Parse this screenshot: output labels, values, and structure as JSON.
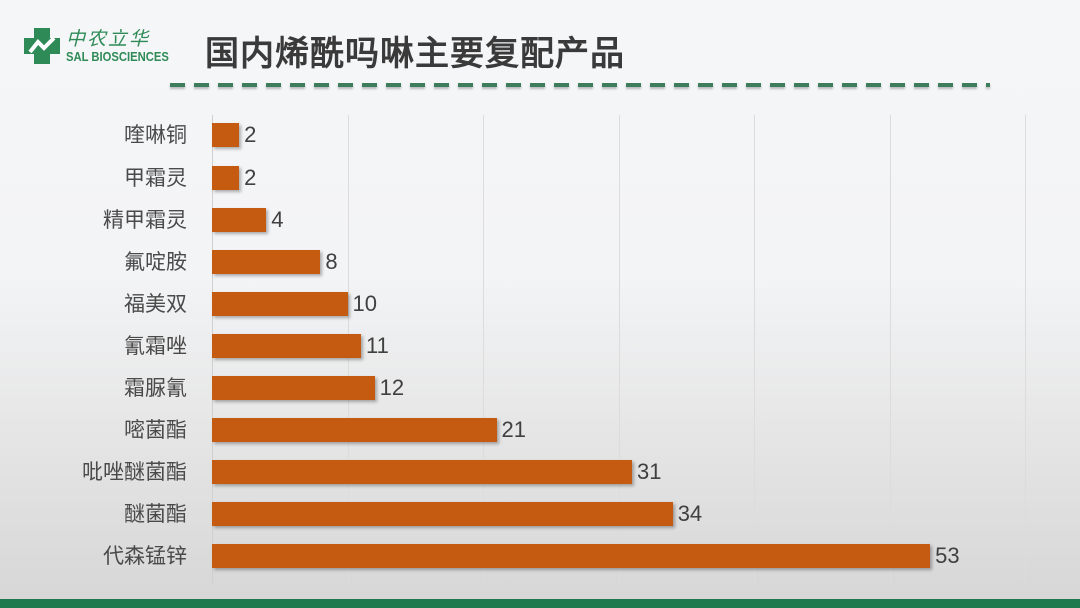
{
  "header": {
    "logo_cn": "中农立华",
    "logo_en": "SAL BIOSCIENCES",
    "title": "国内烯酰吗啉主要复配产品"
  },
  "colors": {
    "bar": "#c55a11",
    "brand_green": "#2e8b57",
    "footer_green": "#1f7a4d",
    "dash_green": "#3d7d5c"
  },
  "chart_data": {
    "type": "bar",
    "orientation": "horizontal",
    "title": "国内烯酰吗啉主要复配产品",
    "categories": [
      "喹啉铜",
      "甲霜灵",
      "精甲霜灵",
      "氟啶胺",
      "福美双",
      "氰霜唑",
      "霜脲氰",
      "嘧菌酯",
      "吡唑醚菌酯",
      "醚菌酯",
      "代森锰锌"
    ],
    "values": [
      2,
      2,
      4,
      8,
      10,
      11,
      12,
      21,
      31,
      34,
      53
    ],
    "xlabel": "",
    "ylabel": "",
    "xlim": [
      0,
      60
    ],
    "gridlines_x": [
      10,
      20,
      30,
      40,
      50,
      60
    ],
    "grid": true,
    "data_labels": true,
    "legend": "none"
  }
}
